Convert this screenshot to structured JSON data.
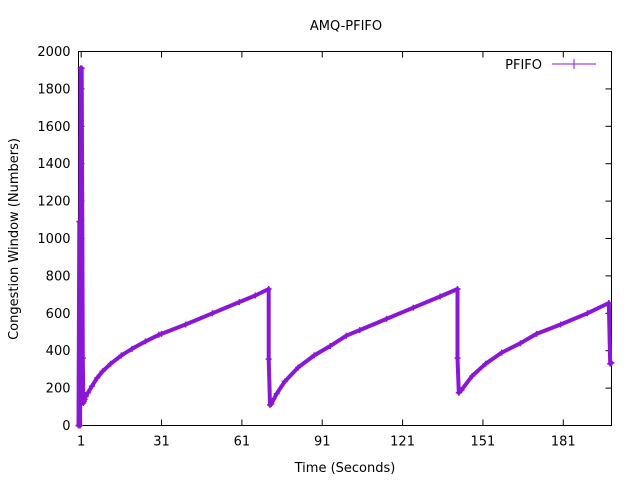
{
  "chart_data": {
    "type": "line",
    "title": "AMQ-PFIFO",
    "xlabel": "Time (Seconds)",
    "ylabel": "Congestion Window (Numbers)",
    "xlim": [
      0,
      199
    ],
    "ylim": [
      0,
      2000
    ],
    "xticks": [
      1,
      31,
      61,
      91,
      121,
      151,
      181
    ],
    "yticks": [
      0,
      200,
      400,
      600,
      800,
      1000,
      1200,
      1400,
      1600,
      1800,
      2000
    ],
    "grid": false,
    "legend_position": "top-right",
    "colors": {
      "series": "#8a17d6",
      "axis": "#000000"
    },
    "series": [
      {
        "name": "PFIFO",
        "x": [
          0.0,
          0.3,
          0.6,
          0.8,
          1.0,
          1.2,
          1.6,
          1.8,
          2.0,
          2.3,
          2.7,
          3.5,
          5.0,
          7.0,
          9.0,
          12.0,
          16.0,
          20.0,
          25.0,
          30.0,
          31.0,
          40.0,
          50.0,
          60.0,
          66.0,
          71.0,
          71.0,
          71.5,
          72.0,
          74.0,
          77.0,
          82.0,
          88.0,
          94.0,
          100.0,
          105.0,
          115.0,
          125.0,
          135.0,
          141.5,
          141.5,
          142.0,
          143.0,
          147.0,
          152.0,
          158.0,
          165.0,
          171.0,
          180.0,
          190.0,
          198.0,
          198.5,
          199.0
        ],
        "y": [
          0,
          1090,
          0,
          1910,
          1100,
          1910,
          360,
          120,
          130,
          140,
          155,
          175,
          210,
          255,
          290,
          330,
          375,
          410,
          450,
          485,
          490,
          540,
          600,
          660,
          695,
          730,
          355,
          110,
          115,
          170,
          235,
          310,
          375,
          425,
          480,
          510,
          570,
          630,
          690,
          730,
          360,
          175,
          190,
          265,
          330,
          390,
          440,
          490,
          540,
          600,
          655,
          330,
          335
        ]
      }
    ]
  }
}
